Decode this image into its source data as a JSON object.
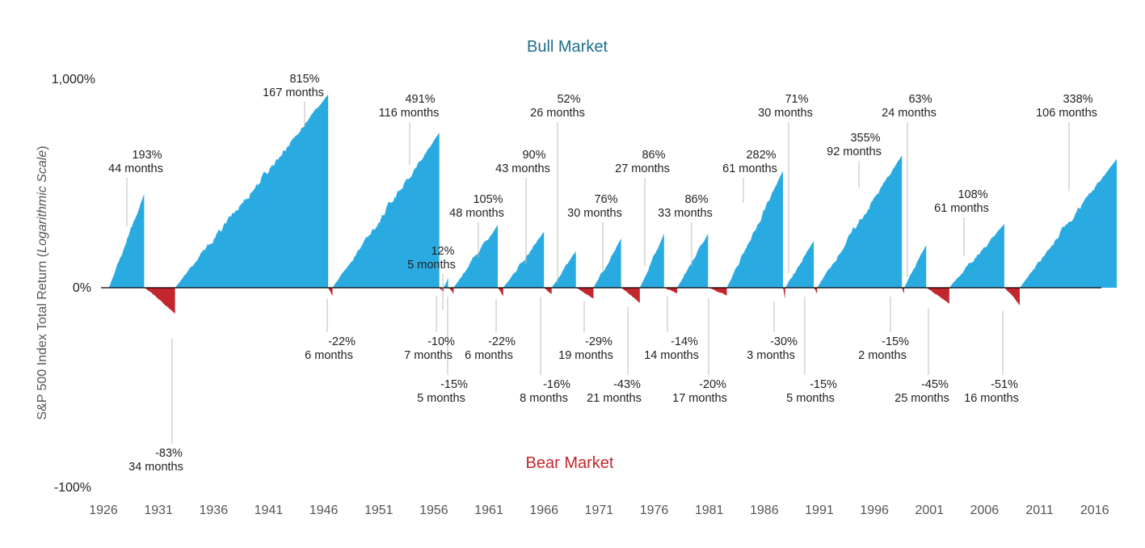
{
  "chart_data": {
    "type": "area",
    "title_top": "Bull Market",
    "title_bottom": "Bear Market",
    "ylabel_prefix": "S&P 500 Index Total Return (",
    "ylabel_italic": "Logarithmic Scale",
    "ylabel_suffix": ")",
    "y_scale": "log",
    "y_ticks": [
      "1,000%",
      "0%",
      "-100%"
    ],
    "x_ticks": [
      "1926",
      "1931",
      "1936",
      "1941",
      "1946",
      "1951",
      "1956",
      "1961",
      "1966",
      "1971",
      "1976",
      "1981",
      "1986",
      "1991",
      "1996",
      "2001",
      "2006",
      "2011",
      "2016"
    ],
    "colors": {
      "bull": "#29abe2",
      "bear": "#c1272d"
    },
    "bull_markets": [
      {
        "start": 1926.5,
        "end": 1929.7,
        "return_pct": 193,
        "months": 44,
        "return_label": "193%",
        "months_label": "44 months"
      },
      {
        "start": 1932.5,
        "end": 1946.4,
        "return_pct": 815,
        "months": 167,
        "return_label": "815%",
        "months_label": "167 months"
      },
      {
        "start": 1946.8,
        "end": 1956.5,
        "return_pct": 491,
        "months": 116,
        "return_label": "491%",
        "months_label": "116 months"
      },
      {
        "start": 1956.9,
        "end": 1957.3,
        "return_pct": 12,
        "months": 5,
        "return_label": "12%",
        "months_label": "5 months"
      },
      {
        "start": 1957.8,
        "end": 1961.8,
        "return_pct": 105,
        "months": 48,
        "return_label": "105%",
        "months_label": "48 months"
      },
      {
        "start": 1962.3,
        "end": 1966.0,
        "return_pct": 90,
        "months": 43,
        "return_label": "90%",
        "months_label": "43 months"
      },
      {
        "start": 1966.7,
        "end": 1968.9,
        "return_pct": 52,
        "months": 26,
        "return_label": "52%",
        "months_label": "26 months"
      },
      {
        "start": 1970.5,
        "end": 1973.0,
        "return_pct": 76,
        "months": 30,
        "return_label": "76%",
        "months_label": "30 months"
      },
      {
        "start": 1974.7,
        "end": 1976.9,
        "return_pct": 86,
        "months": 27,
        "return_label": "86%",
        "months_label": "27 months"
      },
      {
        "start": 1978.1,
        "end": 1980.9,
        "return_pct": 86,
        "months": 33,
        "return_label": "86%",
        "months_label": "33 months"
      },
      {
        "start": 1982.6,
        "end": 1987.7,
        "return_pct": 282,
        "months": 61,
        "return_label": "282%",
        "months_label": "61 months"
      },
      {
        "start": 1987.9,
        "end": 1990.5,
        "return_pct": 71,
        "months": 30,
        "return_label": "71%",
        "months_label": "30 months"
      },
      {
        "start": 1990.8,
        "end": 1998.5,
        "return_pct": 355,
        "months": 92,
        "return_label": "355%",
        "months_label": "92 months"
      },
      {
        "start": 1998.7,
        "end": 2000.7,
        "return_pct": 63,
        "months": 24,
        "return_label": "63%",
        "months_label": "24 months"
      },
      {
        "start": 2002.8,
        "end": 2007.8,
        "return_pct": 108,
        "months": 61,
        "return_label": "108%",
        "months_label": "61 months"
      },
      {
        "start": 2009.2,
        "end": 2018.0,
        "return_pct": 338,
        "months": 106,
        "return_label": "338%",
        "months_label": "106 months"
      }
    ],
    "bear_markets": [
      {
        "start": 1929.7,
        "end": 1932.5,
        "return_pct": -83,
        "months": 34,
        "return_label": "-83%",
        "months_label": "34 months"
      },
      {
        "start": 1946.4,
        "end": 1946.8,
        "return_pct": -22,
        "months": 6,
        "return_label": "-22%",
        "months_label": "6 months"
      },
      {
        "start": 1956.5,
        "end": 1956.9,
        "return_pct": -10,
        "months": 7,
        "return_label": "-10%",
        "months_label": "7 months"
      },
      {
        "start": 1957.3,
        "end": 1957.8,
        "return_pct": -15,
        "months": 5,
        "return_label": "-15%",
        "months_label": "5 months"
      },
      {
        "start": 1961.8,
        "end": 1962.3,
        "return_pct": -22,
        "months": 6,
        "return_label": "-22%",
        "months_label": "6 months"
      },
      {
        "start": 1966.0,
        "end": 1966.7,
        "return_pct": -16,
        "months": 8,
        "return_label": "-16%",
        "months_label": "8 months"
      },
      {
        "start": 1968.9,
        "end": 1970.5,
        "return_pct": -29,
        "months": 19,
        "return_label": "-29%",
        "months_label": "19 months"
      },
      {
        "start": 1973.0,
        "end": 1974.7,
        "return_pct": -43,
        "months": 21,
        "return_label": "-43%",
        "months_label": "21 months"
      },
      {
        "start": 1976.9,
        "end": 1978.1,
        "return_pct": -14,
        "months": 14,
        "return_label": "-14%",
        "months_label": "14 months"
      },
      {
        "start": 1980.9,
        "end": 1982.6,
        "return_pct": -20,
        "months": 17,
        "return_label": "-20%",
        "months_label": "17 months"
      },
      {
        "start": 1987.7,
        "end": 1987.9,
        "return_pct": -30,
        "months": 3,
        "return_label": "-30%",
        "months_label": "3 months"
      },
      {
        "start": 1990.5,
        "end": 1990.8,
        "return_pct": -15,
        "months": 5,
        "return_label": "-15%",
        "months_label": "5 months"
      },
      {
        "start": 1998.5,
        "end": 1998.7,
        "return_pct": -15,
        "months": 2,
        "return_label": "-15%",
        "months_label": "2 months"
      },
      {
        "start": 2000.7,
        "end": 2002.8,
        "return_pct": -45,
        "months": 25,
        "return_label": "-45%",
        "months_label": "25 months"
      },
      {
        "start": 2007.8,
        "end": 2009.2,
        "return_pct": -51,
        "months": 16,
        "return_label": "-51%",
        "months_label": "16 months"
      }
    ]
  }
}
